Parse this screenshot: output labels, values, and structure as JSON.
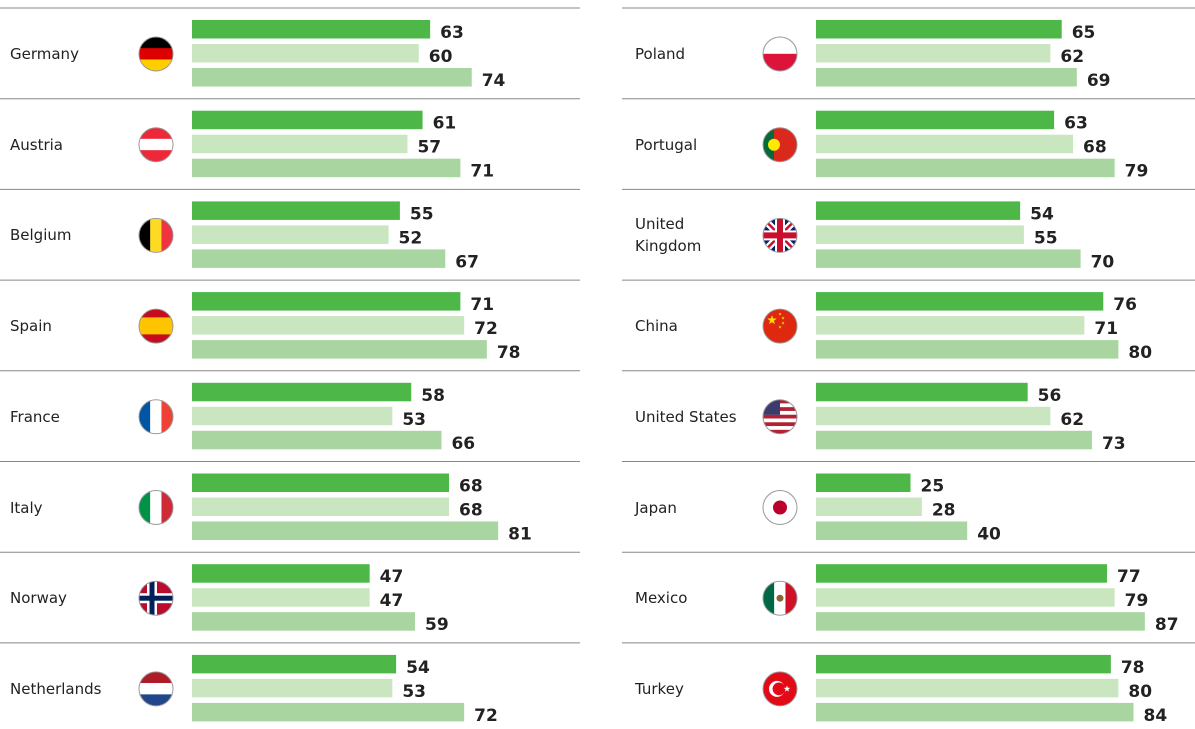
{
  "chart_data": {
    "type": "bar",
    "categories": [
      "Germany",
      "Austria",
      "Belgium",
      "Spain",
      "France",
      "Italy",
      "Norway",
      "Netherlands",
      "Poland",
      "Portugal",
      "United Kingdom",
      "China",
      "United States",
      "Japan",
      "Mexico",
      "Turkey"
    ],
    "series": [
      {
        "color": "#4db848",
        "values": [
          63,
          61,
          55,
          71,
          58,
          68,
          47,
          54,
          65,
          63,
          54,
          76,
          56,
          25,
          77,
          78
        ]
      },
      {
        "color": "#c9e6c0",
        "values": [
          60,
          57,
          52,
          72,
          53,
          68,
          47,
          53,
          62,
          68,
          55,
          71,
          62,
          28,
          79,
          80
        ]
      },
      {
        "color": "#a8d5a0",
        "values": [
          74,
          71,
          67,
          78,
          66,
          81,
          59,
          72,
          69,
          79,
          70,
          80,
          73,
          40,
          87,
          84
        ]
      }
    ]
  }
}
